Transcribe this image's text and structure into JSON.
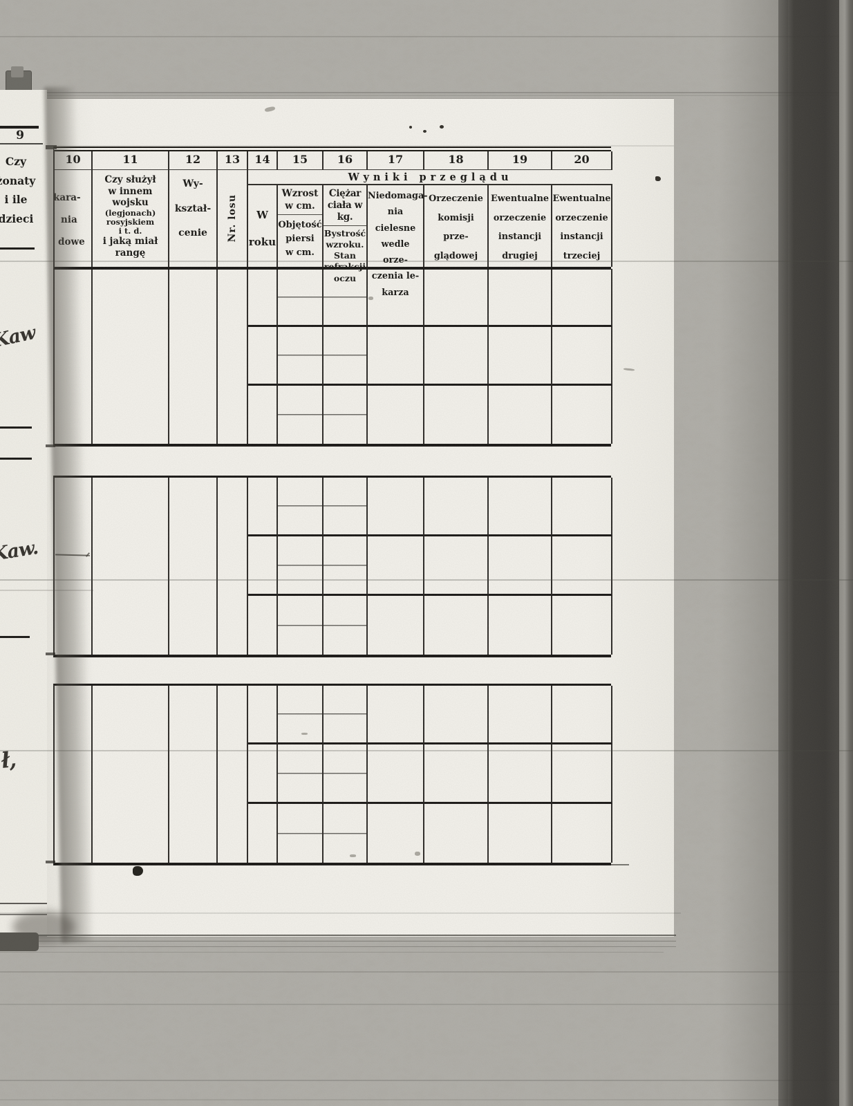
{
  "left_page": {
    "column_number": "9",
    "header_lines": [
      "Czy",
      "żonaty",
      "i ile",
      "dzieci"
    ],
    "handwriting": [
      {
        "text": "Kaw"
      },
      {
        "text": "Kaw."
      },
      {
        "text": "ł,"
      }
    ]
  },
  "table": {
    "banner": "Wyniki przeglądu",
    "columns": [
      {
        "number": "10",
        "lines": [
          "kara-",
          "nia",
          "dowe"
        ]
      },
      {
        "number": "11",
        "lines": [
          "Czy służył",
          "w innem",
          "wojsku",
          "(legjonach)",
          "rosyjskiem",
          "i t. d.",
          "i jaką miał",
          "rangę"
        ]
      },
      {
        "number": "12",
        "lines": [
          "Wy-",
          "kształ-",
          "cenie"
        ]
      },
      {
        "number": "13",
        "lines": [
          "Nr. losu"
        ]
      },
      {
        "number": "14",
        "lines": [
          "W",
          "roku"
        ]
      },
      {
        "number": "15",
        "top": [
          "Wzrost",
          "w cm."
        ],
        "bottom": [
          "Objętość",
          "piersi",
          "w cm."
        ]
      },
      {
        "number": "16",
        "top": [
          "Ciężar",
          "ciała w kg."
        ],
        "bottom": [
          "Bystrość",
          "wzroku.",
          "Stan",
          "refrakcji",
          "oczu"
        ]
      },
      {
        "number": "17",
        "lines": [
          "Niedomaga-",
          "nia cielesne",
          "wedle orze-",
          "czenia le-",
          "karza"
        ]
      },
      {
        "number": "18",
        "lines": [
          "Orzeczenie",
          "komisji",
          "prze-",
          "glądowej"
        ]
      },
      {
        "number": "19",
        "lines": [
          "Ewentualne",
          "orzeczenie",
          "instancji",
          "drugiej"
        ]
      },
      {
        "number": "20",
        "lines": [
          "Ewentualne",
          "orzeczenie",
          "instancji",
          "trzeciej"
        ]
      }
    ],
    "record_count": 3,
    "sub_rows_per_record": 3
  }
}
